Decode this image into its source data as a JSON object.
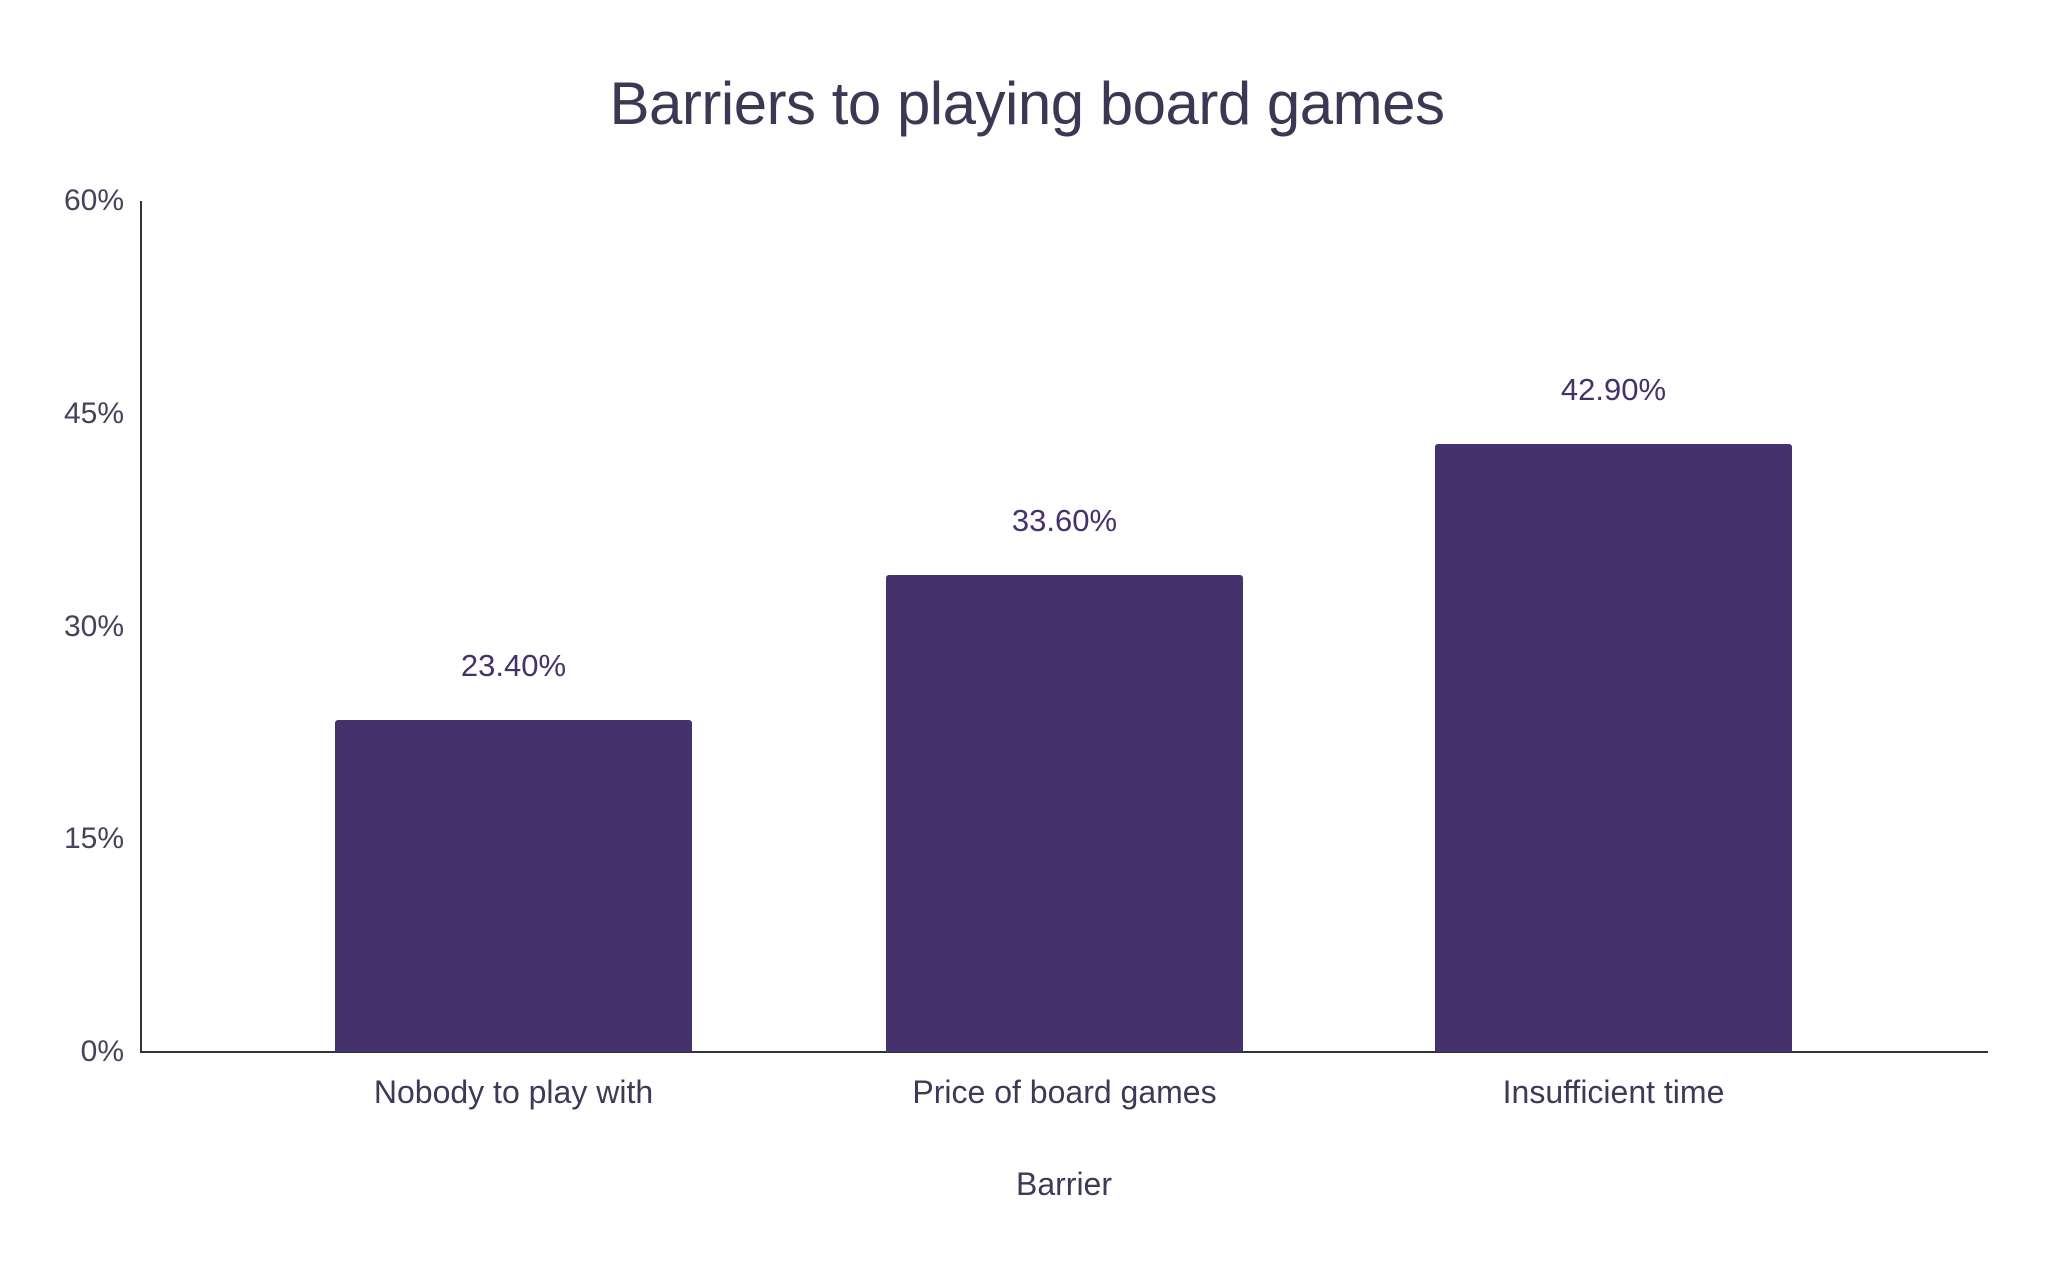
{
  "chart_data": {
    "type": "bar",
    "title": "Barriers to playing board games",
    "xlabel": "Barrier",
    "ylabel": "",
    "categories": [
      "Nobody to play with",
      "Price of board games",
      "Insufficient time"
    ],
    "values": [
      23.4,
      33.6,
      42.9
    ],
    "value_labels": [
      "23.40%",
      "33.60%",
      "42.90%"
    ],
    "ylim": [
      0,
      60
    ],
    "yticks": [
      0,
      15,
      30,
      45,
      60
    ],
    "ytick_labels": [
      "0%",
      "15%",
      "30%",
      "45%",
      "60%"
    ],
    "grid": false,
    "legend": null,
    "colors": {
      "bar": "#45316b",
      "text": "#3d3a57",
      "axis": "#333333"
    }
  }
}
